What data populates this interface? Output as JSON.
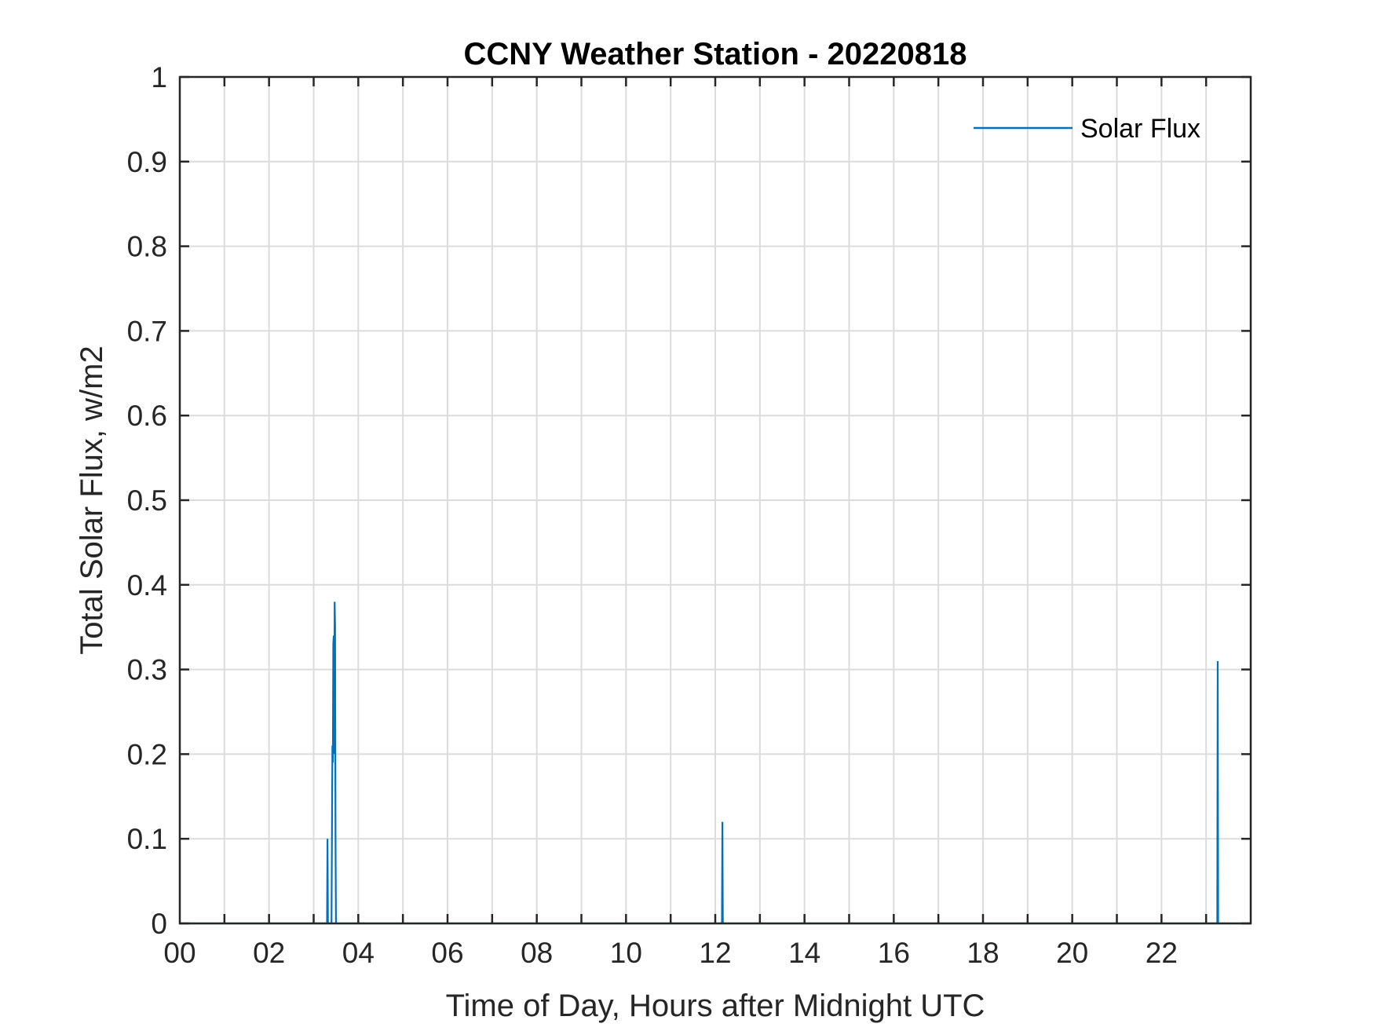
{
  "chart_data": {
    "type": "line",
    "title": "CCNY Weather Station - 20220818",
    "xlabel": "Time of Day, Hours after Midnight UTC",
    "ylabel": "Total Solar Flux, w/m2",
    "xlim": [
      0,
      24
    ],
    "ylim": [
      0,
      1
    ],
    "x_ticks": [
      "00",
      "02",
      "04",
      "06",
      "08",
      "10",
      "12",
      "14",
      "16",
      "18",
      "20",
      "22"
    ],
    "y_ticks": [
      "0",
      "0.1",
      "0.2",
      "0.3",
      "0.4",
      "0.5",
      "0.6",
      "0.7",
      "0.8",
      "0.9",
      "1"
    ],
    "grid": true,
    "legend_position": "top-right",
    "series": [
      {
        "name": "Solar Flux",
        "color": "#0072BD",
        "x": [
          0,
          3.3,
          3.31,
          3.32,
          3.4,
          3.42,
          3.43,
          3.44,
          3.45,
          3.46,
          3.47,
          3.48,
          3.49,
          3.5,
          3.51,
          12.15,
          12.16,
          12.17,
          23.25,
          23.26,
          23.27,
          24
        ],
        "y": [
          0,
          0,
          0.1,
          0,
          0,
          0.21,
          0.19,
          0.33,
          0.34,
          0.2,
          0.38,
          0.35,
          0.1,
          0,
          0,
          0,
          0.12,
          0,
          0,
          0.31,
          0,
          0
        ]
      }
    ]
  }
}
